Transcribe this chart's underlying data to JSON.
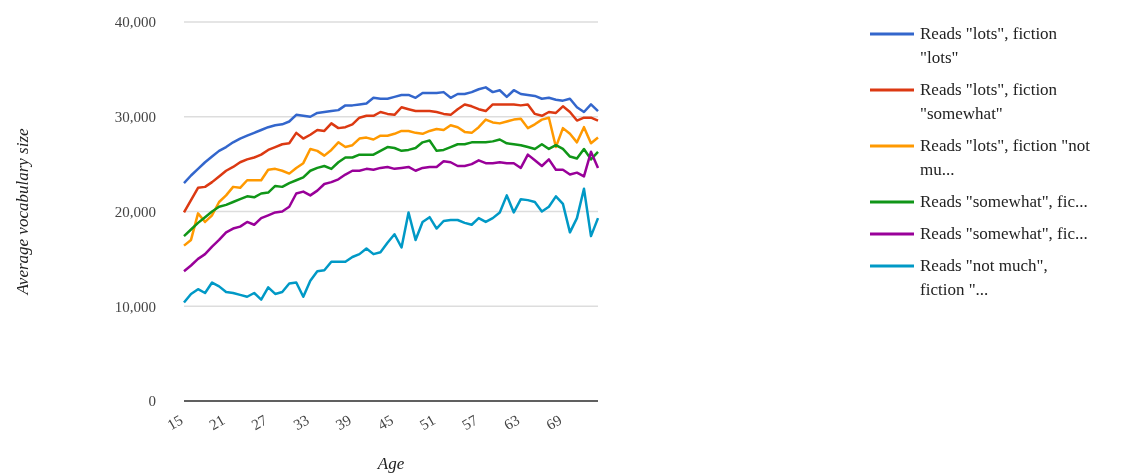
{
  "chart_data": {
    "type": "line",
    "xlabel": "Age",
    "ylabel": "Average vocabulary size",
    "categories": [
      "15",
      null,
      null,
      null,
      null,
      null,
      "21",
      null,
      null,
      null,
      null,
      null,
      "27",
      null,
      null,
      null,
      null,
      null,
      "33",
      null,
      null,
      null,
      null,
      null,
      "39",
      null,
      null,
      null,
      null,
      null,
      "45",
      null,
      null,
      null,
      null,
      null,
      "51",
      null,
      null,
      null,
      null,
      null,
      "57",
      null,
      null,
      null,
      null,
      null,
      "63",
      null,
      null,
      null,
      null,
      null,
      "69",
      null,
      null,
      null,
      null,
      null
    ],
    "ylim": [
      0,
      40000
    ],
    "yticks": [
      {
        "value": 0,
        "label": "0"
      },
      {
        "value": 10000,
        "label": "10,000"
      },
      {
        "value": 20000,
        "label": "20,000"
      },
      {
        "value": 30000,
        "label": "30,000"
      },
      {
        "value": 40000,
        "label": "40,000"
      }
    ],
    "grid": "y",
    "legend": "right",
    "marker": "none",
    "line_style": "solid",
    "series": [
      {
        "name": "Reads \"lots\", fiction \"lots\"",
        "color": "#3366cc",
        "values": [
          23000,
          23800,
          24500,
          25200,
          25800,
          26400,
          26800,
          27300,
          27700,
          28000,
          28300,
          28600,
          28900,
          29100,
          29200,
          29500,
          30200,
          30100,
          30000,
          30400,
          30500,
          30600,
          30700,
          31200,
          31200,
          31300,
          31400,
          32000,
          31900,
          31900,
          32100,
          32300,
          32300,
          32000,
          32500,
          32500,
          32500,
          32600,
          32000,
          32400,
          32400,
          32600,
          32900,
          33100,
          32600,
          32800,
          32100,
          32800,
          32400,
          32300,
          32200,
          31900,
          32000,
          31800,
          31700,
          31900,
          31000,
          30500,
          31300,
          30600
        ]
      },
      {
        "name": "Reads \"lots\", fiction \"somewhat\"",
        "color": "#dc3912",
        "values": [
          19900,
          21200,
          22500,
          22600,
          23100,
          23700,
          24300,
          24700,
          25200,
          25500,
          25700,
          26000,
          26500,
          26800,
          27100,
          27200,
          28300,
          27700,
          28100,
          28600,
          28500,
          29300,
          28800,
          28900,
          29200,
          29900,
          30100,
          30100,
          30500,
          30300,
          30200,
          31000,
          30800,
          30600,
          30600,
          30600,
          30500,
          30300,
          30200,
          30800,
          31300,
          31100,
          30800,
          30600,
          31300,
          31300,
          31300,
          31300,
          31200,
          31300,
          30300,
          30100,
          30500,
          30400,
          31100,
          30500,
          29600,
          29900,
          29900,
          29600
        ]
      },
      {
        "name": "Reads \"lots\", fiction \"not mu...",
        "color": "#ff9900",
        "values": [
          16400,
          17000,
          19800,
          18900,
          19600,
          21000,
          21700,
          22600,
          22500,
          23300,
          23300,
          23300,
          24400,
          24500,
          24300,
          24000,
          24600,
          25100,
          26600,
          26400,
          25900,
          26500,
          27300,
          26800,
          27000,
          27700,
          27800,
          27600,
          28000,
          28000,
          28200,
          28500,
          28500,
          28300,
          28200,
          28500,
          28700,
          28600,
          29100,
          28900,
          28400,
          28300,
          28900,
          29700,
          29400,
          29300,
          29500,
          29700,
          29800,
          28800,
          29200,
          29700,
          29900,
          26800,
          28800,
          28200,
          27300,
          28900,
          27200,
          27800
        ]
      },
      {
        "name": "Reads \"somewhat\", fic...",
        "color": "#109618",
        "values": [
          17400,
          18100,
          18800,
          19400,
          20000,
          20500,
          20700,
          21000,
          21300,
          21600,
          21500,
          21900,
          22000,
          22700,
          22600,
          23000,
          23300,
          23600,
          24300,
          24600,
          24800,
          24500,
          25200,
          25700,
          25700,
          26000,
          26000,
          26000,
          26400,
          26800,
          26700,
          26400,
          26500,
          26700,
          27300,
          27500,
          26400,
          26500,
          26800,
          27100,
          27100,
          27300,
          27300,
          27300,
          27400,
          27600,
          27200,
          27100,
          27000,
          26800,
          26600,
          27100,
          26600,
          27000,
          26600,
          25800,
          25600,
          26600,
          25500,
          26300
        ]
      },
      {
        "name": "Reads \"somewhat\", fic...",
        "color": "#990099",
        "values": [
          13700,
          14300,
          15000,
          15500,
          16300,
          17000,
          17800,
          18200,
          18400,
          18900,
          18600,
          19300,
          19600,
          19900,
          20000,
          20500,
          21900,
          22100,
          21700,
          22200,
          22900,
          23100,
          23400,
          23900,
          24300,
          24300,
          24500,
          24400,
          24600,
          24700,
          24500,
          24600,
          24700,
          24300,
          24600,
          24700,
          24700,
          25300,
          25200,
          24800,
          24800,
          25000,
          25400,
          25100,
          25100,
          25200,
          25100,
          25100,
          24600,
          26000,
          25400,
          24800,
          25500,
          24400,
          24400,
          23900,
          24100,
          23700,
          26300,
          24600
        ]
      },
      {
        "name": "Reads \"not much\", fiction \"...",
        "color": "#0099c6",
        "values": [
          10400,
          11300,
          11800,
          11400,
          12500,
          12100,
          11500,
          11400,
          11200,
          11000,
          11400,
          10700,
          12000,
          11300,
          11500,
          12400,
          12500,
          11000,
          12700,
          13700,
          13800,
          14700,
          14700,
          14700,
          15200,
          15500,
          16100,
          15500,
          15700,
          16700,
          17600,
          16200,
          19900,
          17000,
          18900,
          19400,
          18200,
          19000,
          19100,
          19100,
          18800,
          18600,
          19300,
          18900,
          19300,
          19900,
          21700,
          19900,
          21300,
          21200,
          21000,
          20000,
          20500,
          21600,
          20800,
          17800,
          19300,
          22400,
          17400,
          19300
        ]
      }
    ]
  }
}
